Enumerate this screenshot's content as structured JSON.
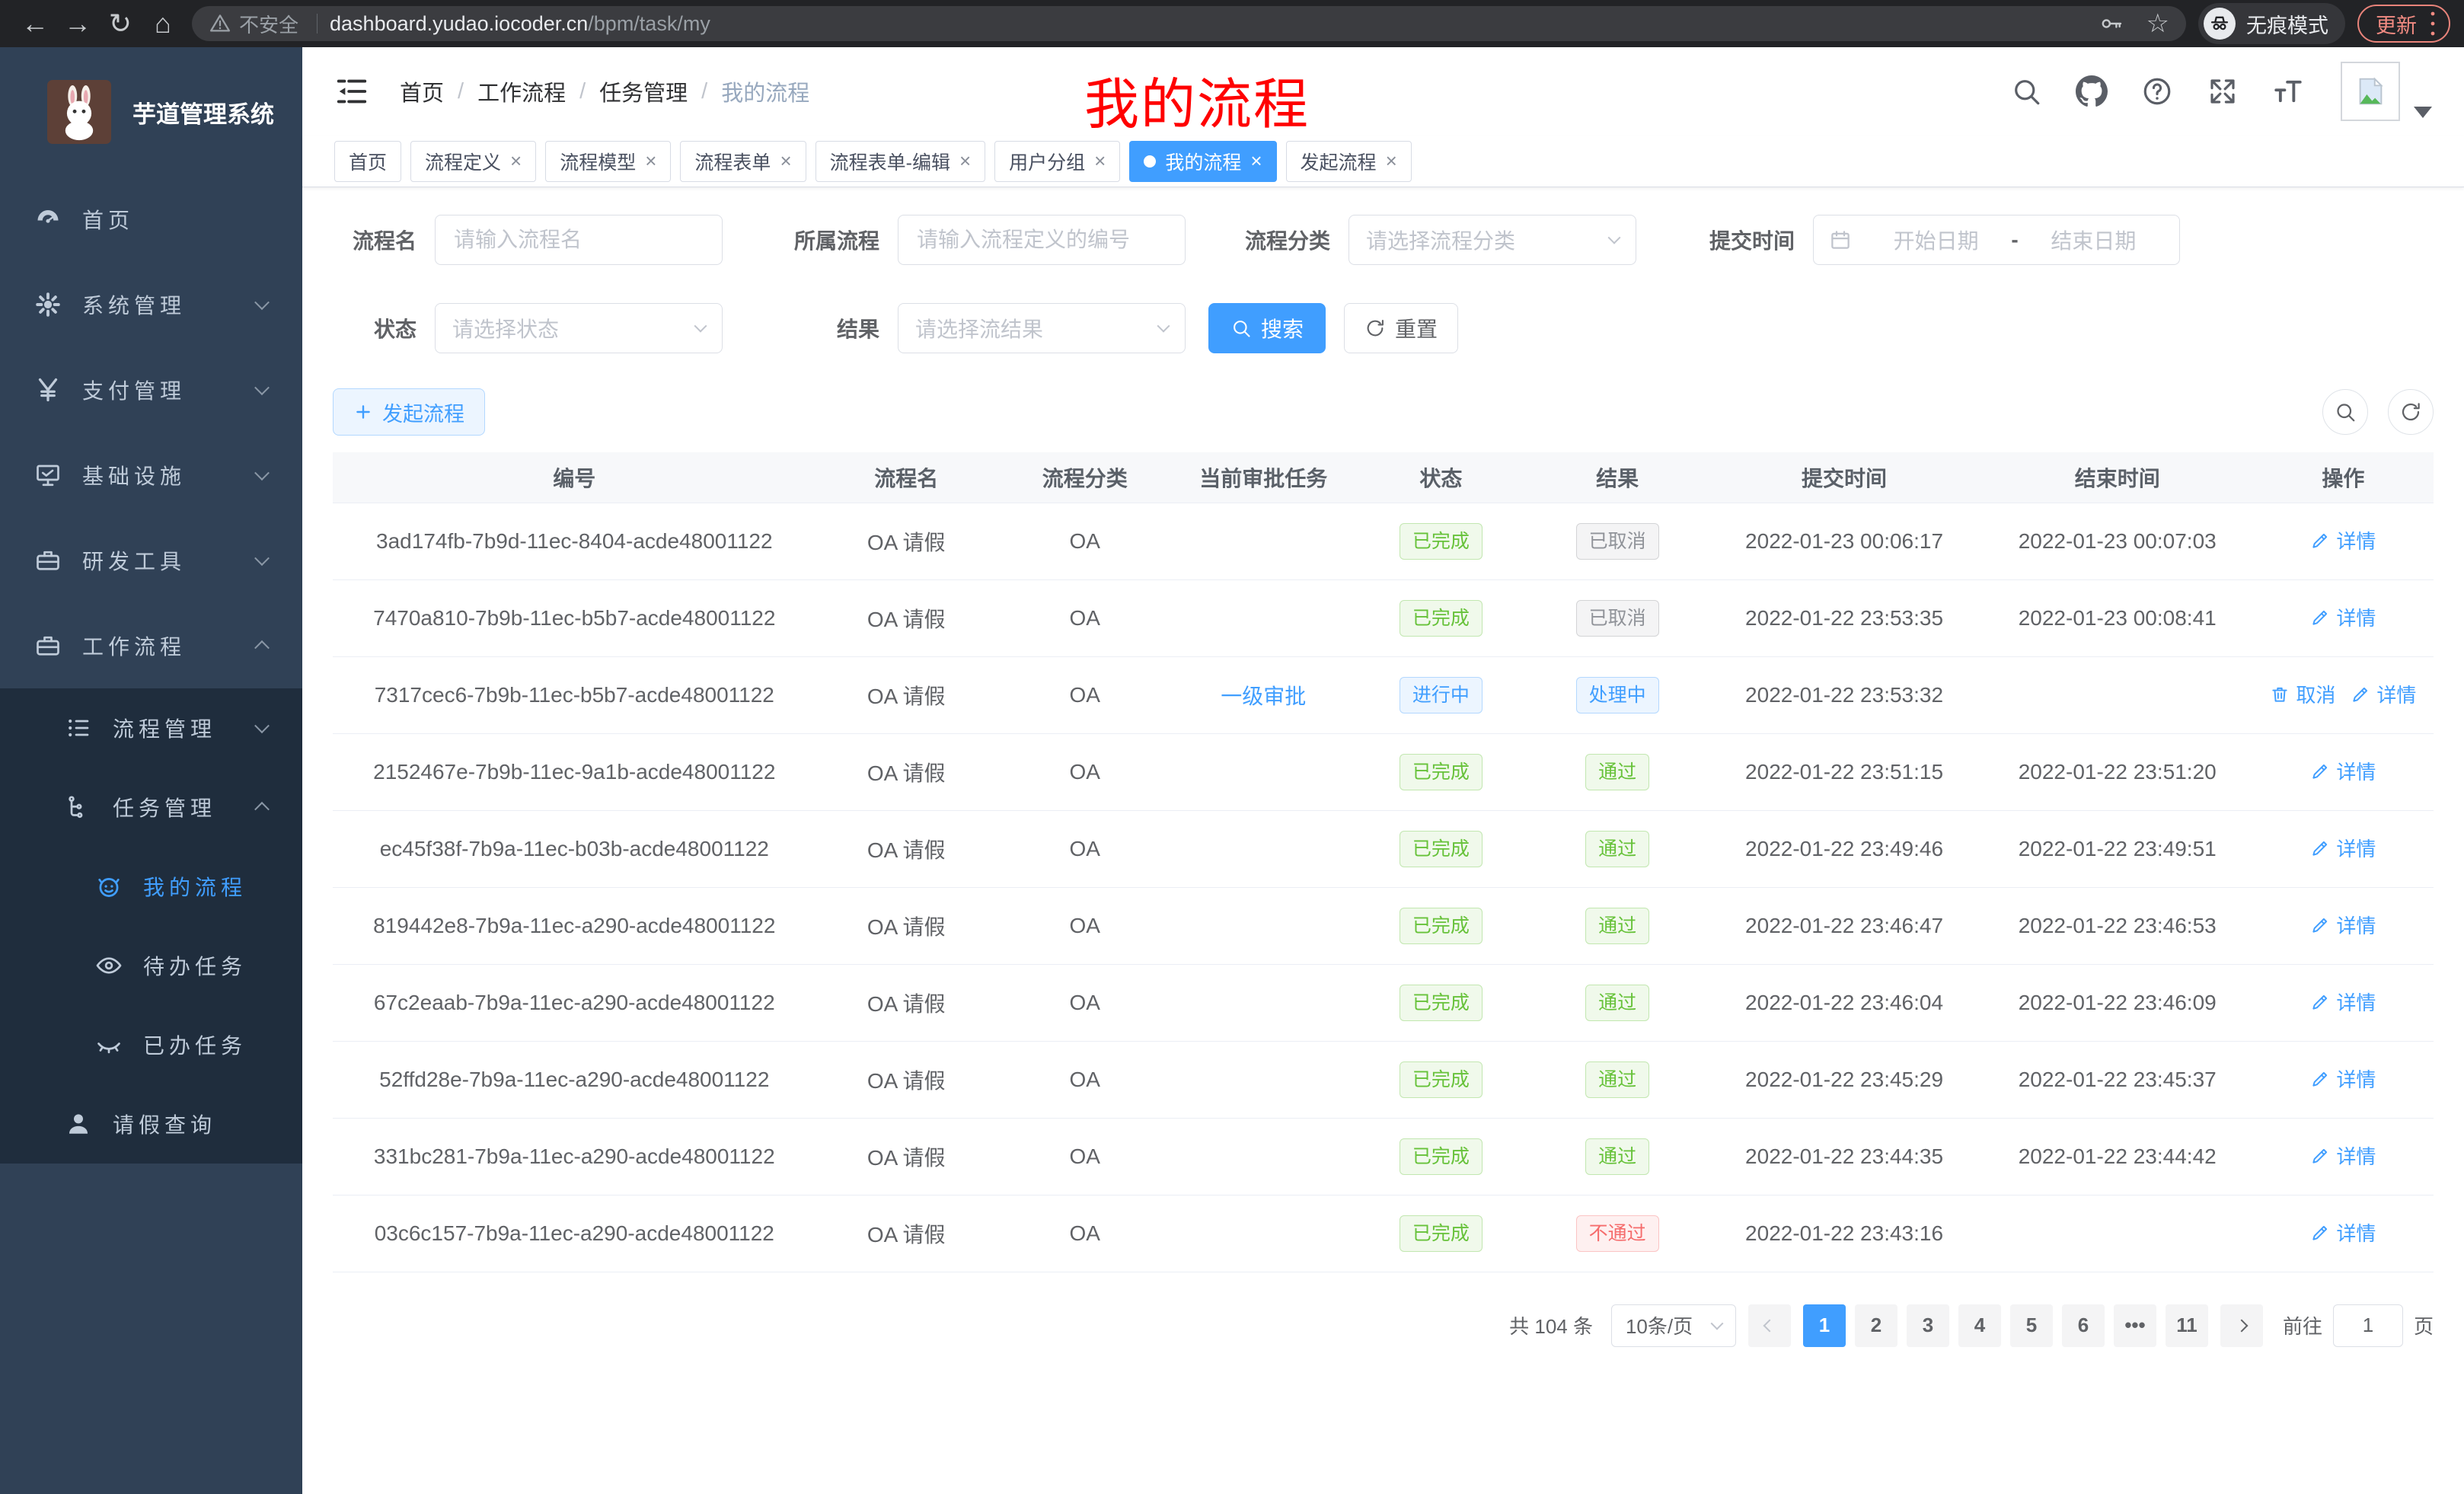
{
  "browser": {
    "back_icon": "←",
    "forward_icon": "→",
    "reload_icon": "↻",
    "home_icon": "⌂",
    "security_warning": "不安全",
    "url_domain": "dashboard.yudao.iocoder.cn",
    "url_path": "/bpm/task/my",
    "star_icon": "☆",
    "incognito_label": "无痕模式",
    "update_label": "更新"
  },
  "sidebar": {
    "app_title": "芋道管理系统",
    "menu": [
      {
        "icon": "gauge",
        "label": "首页",
        "level": 1
      },
      {
        "icon": "gear",
        "label": "系统管理",
        "level": 1,
        "chevron": "down"
      },
      {
        "icon": "yen",
        "label": "支付管理",
        "level": 1,
        "chevron": "down"
      },
      {
        "icon": "monitor",
        "label": "基础设施",
        "level": 1,
        "chevron": "down"
      },
      {
        "icon": "suitcase",
        "label": "研发工具",
        "level": 1,
        "chevron": "down"
      },
      {
        "icon": "suitcase",
        "label": "工作流程",
        "level": 1,
        "chevron": "up"
      },
      {
        "icon": "list",
        "label": "流程管理",
        "level": 2,
        "chevron": "down",
        "dark": true
      },
      {
        "icon": "tree",
        "label": "任务管理",
        "level": 2,
        "chevron": "up",
        "dark": true
      },
      {
        "icon": "robot",
        "label": "我的流程",
        "level": 3,
        "dark": true,
        "active": true
      },
      {
        "icon": "eye",
        "label": "待办任务",
        "level": 3,
        "dark": true
      },
      {
        "icon": "eyeclosed",
        "label": "已办任务",
        "level": 3,
        "dark": true
      },
      {
        "icon": "user",
        "label": "请假查询",
        "level": 2,
        "dark": true
      }
    ]
  },
  "header": {
    "breadcrumb": [
      "首页",
      "工作流程",
      "任务管理",
      "我的流程"
    ],
    "separator": "/"
  },
  "annotation": {
    "text": "我的流程"
  },
  "tabs": [
    {
      "label": "首页",
      "closable": false,
      "active": false
    },
    {
      "label": "流程定义",
      "closable": true,
      "active": false
    },
    {
      "label": "流程模型",
      "closable": true,
      "active": false
    },
    {
      "label": "流程表单",
      "closable": true,
      "active": false
    },
    {
      "label": "流程表单-编辑",
      "closable": true,
      "active": false
    },
    {
      "label": "用户分组",
      "closable": true,
      "active": false
    },
    {
      "label": "我的流程",
      "closable": true,
      "active": true
    },
    {
      "label": "发起流程",
      "closable": true,
      "active": false
    }
  ],
  "filters": {
    "name_label": "流程名",
    "name_placeholder": "请输入流程名",
    "process_label": "所属流程",
    "process_placeholder": "请输入流程定义的编号",
    "category_label": "流程分类",
    "category_placeholder": "请选择流程分类",
    "time_label": "提交时间",
    "date_start_placeholder": "开始日期",
    "date_separator": "-",
    "date_end_placeholder": "结束日期",
    "status_label": "状态",
    "status_placeholder": "请选择状态",
    "result_label": "结果",
    "result_placeholder": "请选择流结果",
    "search_label": "搜索",
    "reset_label": "重置"
  },
  "toolbar": {
    "start_label": "发起流程"
  },
  "table": {
    "columns": [
      "编号",
      "流程名",
      "流程分类",
      "当前审批任务",
      "状态",
      "结果",
      "提交时间",
      "结束时间",
      "操作"
    ],
    "rows": [
      {
        "id": "3ad174fb-7b9d-11ec-8404-acde48001122",
        "name": "OA 请假",
        "category": "OA",
        "task": "",
        "status": {
          "text": "已完成",
          "type": "success"
        },
        "result": {
          "text": "已取消",
          "type": "info"
        },
        "submit_time": "2022-01-23 00:06:17",
        "end_time": "2022-01-23 00:07:03",
        "actions": [
          {
            "label": "详情",
            "icon": "edit"
          }
        ]
      },
      {
        "id": "7470a810-7b9b-11ec-b5b7-acde48001122",
        "name": "OA 请假",
        "category": "OA",
        "task": "",
        "status": {
          "text": "已完成",
          "type": "success"
        },
        "result": {
          "text": "已取消",
          "type": "info"
        },
        "submit_time": "2022-01-22 23:53:35",
        "end_time": "2022-01-23 00:08:41",
        "actions": [
          {
            "label": "详情",
            "icon": "edit"
          }
        ]
      },
      {
        "id": "7317cec6-7b9b-11ec-b5b7-acde48001122",
        "name": "OA 请假",
        "category": "OA",
        "task": "一级审批",
        "status": {
          "text": "进行中",
          "type": "primary"
        },
        "result": {
          "text": "处理中",
          "type": "primary"
        },
        "submit_time": "2022-01-22 23:53:32",
        "end_time": "",
        "actions": [
          {
            "label": "取消",
            "icon": "trash"
          },
          {
            "label": "详情",
            "icon": "edit"
          }
        ]
      },
      {
        "id": "2152467e-7b9b-11ec-9a1b-acde48001122",
        "name": "OA 请假",
        "category": "OA",
        "task": "",
        "status": {
          "text": "已完成",
          "type": "success"
        },
        "result": {
          "text": "通过",
          "type": "success"
        },
        "submit_time": "2022-01-22 23:51:15",
        "end_time": "2022-01-22 23:51:20",
        "actions": [
          {
            "label": "详情",
            "icon": "edit"
          }
        ]
      },
      {
        "id": "ec45f38f-7b9a-11ec-b03b-acde48001122",
        "name": "OA 请假",
        "category": "OA",
        "task": "",
        "status": {
          "text": "已完成",
          "type": "success"
        },
        "result": {
          "text": "通过",
          "type": "success"
        },
        "submit_time": "2022-01-22 23:49:46",
        "end_time": "2022-01-22 23:49:51",
        "actions": [
          {
            "label": "详情",
            "icon": "edit"
          }
        ]
      },
      {
        "id": "819442e8-7b9a-11ec-a290-acde48001122",
        "name": "OA 请假",
        "category": "OA",
        "task": "",
        "status": {
          "text": "已完成",
          "type": "success"
        },
        "result": {
          "text": "通过",
          "type": "success"
        },
        "submit_time": "2022-01-22 23:46:47",
        "end_time": "2022-01-22 23:46:53",
        "actions": [
          {
            "label": "详情",
            "icon": "edit"
          }
        ]
      },
      {
        "id": "67c2eaab-7b9a-11ec-a290-acde48001122",
        "name": "OA 请假",
        "category": "OA",
        "task": "",
        "status": {
          "text": "已完成",
          "type": "success"
        },
        "result": {
          "text": "通过",
          "type": "success"
        },
        "submit_time": "2022-01-22 23:46:04",
        "end_time": "2022-01-22 23:46:09",
        "actions": [
          {
            "label": "详情",
            "icon": "edit"
          }
        ]
      },
      {
        "id": "52ffd28e-7b9a-11ec-a290-acde48001122",
        "name": "OA 请假",
        "category": "OA",
        "task": "",
        "status": {
          "text": "已完成",
          "type": "success"
        },
        "result": {
          "text": "通过",
          "type": "success"
        },
        "submit_time": "2022-01-22 23:45:29",
        "end_time": "2022-01-22 23:45:37",
        "actions": [
          {
            "label": "详情",
            "icon": "edit"
          }
        ]
      },
      {
        "id": "331bc281-7b9a-11ec-a290-acde48001122",
        "name": "OA 请假",
        "category": "OA",
        "task": "",
        "status": {
          "text": "已完成",
          "type": "success"
        },
        "result": {
          "text": "通过",
          "type": "success"
        },
        "submit_time": "2022-01-22 23:44:35",
        "end_time": "2022-01-22 23:44:42",
        "actions": [
          {
            "label": "详情",
            "icon": "edit"
          }
        ]
      },
      {
        "id": "03c6c157-7b9a-11ec-a290-acde48001122",
        "name": "OA 请假",
        "category": "OA",
        "task": "",
        "status": {
          "text": "已完成",
          "type": "success"
        },
        "result": {
          "text": "不通过",
          "type": "danger"
        },
        "submit_time": "2022-01-22 23:43:16",
        "end_time": "",
        "actions": [
          {
            "label": "详情",
            "icon": "edit"
          }
        ]
      }
    ]
  },
  "pagination": {
    "total_text": "共 104 条",
    "page_size": "10条/页",
    "pages": [
      "1",
      "2",
      "3",
      "4",
      "5",
      "6",
      "•••",
      "11"
    ],
    "active_page": "1",
    "goto_label": "前往",
    "goto_value": "1",
    "goto_suffix": "页"
  }
}
